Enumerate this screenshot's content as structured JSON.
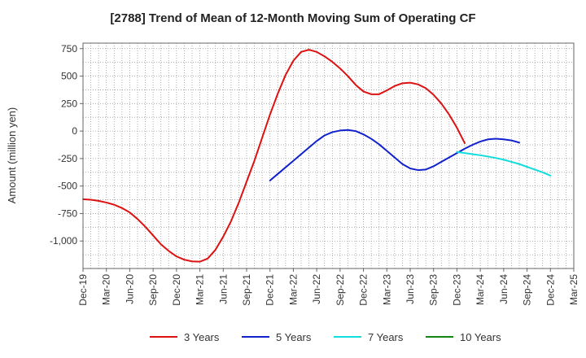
{
  "chart_data": {
    "type": "line",
    "title": "[2788]  Trend of Mean of 12-Month Moving Sum of Operating CF",
    "xlabel": "",
    "ylabel": "Amount (million yen)",
    "ylim": [
      -1250,
      800
    ],
    "grid": true,
    "legend_position": "bottom",
    "x_ticks": [
      "Dec-19",
      "Mar-20",
      "Jun-20",
      "Sep-20",
      "Dec-20",
      "Mar-21",
      "Jun-21",
      "Sep-21",
      "Dec-21",
      "Mar-22",
      "Jun-22",
      "Sep-22",
      "Dec-22",
      "Mar-23",
      "Jun-23",
      "Sep-23",
      "Dec-23",
      "Mar-24",
      "Jun-24",
      "Sep-24",
      "Dec-24",
      "Mar-25"
    ],
    "y_ticks": [
      750,
      500,
      250,
      0,
      -250,
      -500,
      -750,
      -1000
    ],
    "y_tick_labels": [
      "750",
      "500",
      "250",
      "0",
      "-250",
      "-500",
      "-750",
      "-1,000"
    ],
    "series": [
      {
        "name": "3 Years",
        "color": "#dd1111",
        "start_index": 0,
        "values": [
          -620,
          -625,
          -635,
          -650,
          -670,
          -700,
          -740,
          -800,
          -870,
          -950,
          -1030,
          -1090,
          -1140,
          -1170,
          -1185,
          -1188,
          -1160,
          -1080,
          -960,
          -820,
          -650,
          -460,
          -270,
          -60,
          150,
          340,
          510,
          640,
          720,
          740,
          720,
          680,
          630,
          570,
          500,
          420,
          360,
          335,
          335,
          370,
          410,
          435,
          440,
          425,
          390,
          330,
          250,
          150,
          30,
          -110
        ]
      },
      {
        "name": "5 Years",
        "color": "#1122cc",
        "start_index": 24,
        "values": [
          -450,
          -390,
          -330,
          -270,
          -210,
          -150,
          -90,
          -40,
          -10,
          5,
          10,
          0,
          -30,
          -70,
          -120,
          -180,
          -240,
          -300,
          -340,
          -355,
          -350,
          -320,
          -280,
          -240,
          -200,
          -160,
          -125,
          -95,
          -75,
          -70,
          -75,
          -85,
          -105
        ]
      },
      {
        "name": "7 Years",
        "color": "#11dddd",
        "start_index": 48,
        "values": [
          -190,
          -200,
          -210,
          -220,
          -232,
          -245,
          -260,
          -280,
          -300,
          -325,
          -350,
          -375,
          -405
        ]
      },
      {
        "name": "10 Years",
        "color": "#118811",
        "start_index": 0,
        "values": []
      }
    ]
  }
}
